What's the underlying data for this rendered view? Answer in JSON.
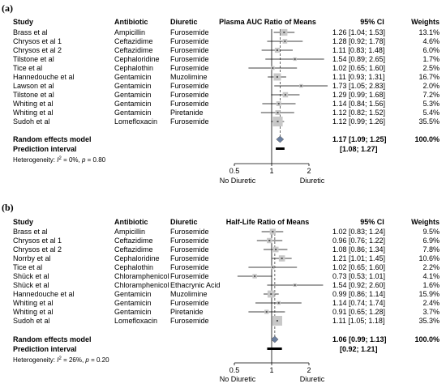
{
  "chart_data": [
    {
      "panel_label": "(a)",
      "type": "forest",
      "columns": [
        "Study",
        "Antibiotic",
        "Diuretic",
        "Plasma AUC Ratio of Means",
        "95% CI",
        "Weights"
      ],
      "rows": [
        {
          "study": "Brass et al",
          "antibiotic": "Ampicillin",
          "diuretic": "Furosemide",
          "est": 1.26,
          "lo": 1.04,
          "hi": 1.53,
          "ci": "1.26 [1.04; 1.53]",
          "weight": "13.1%",
          "w": 13.1
        },
        {
          "study": "Chrysos et al 1",
          "antibiotic": "Ceftazidime",
          "diuretic": "Furosemide",
          "est": 1.28,
          "lo": 0.92,
          "hi": 1.78,
          "ci": "1.28 [0.92; 1.78]",
          "weight": "4.6%",
          "w": 4.6
        },
        {
          "study": "Chrysos et al 2",
          "antibiotic": "Ceftazidime",
          "diuretic": "Furosemide",
          "est": 1.11,
          "lo": 0.83,
          "hi": 1.48,
          "ci": "1.11 [0.83; 1.48]",
          "weight": "6.0%",
          "w": 6.0
        },
        {
          "study": "Tilstone et al",
          "antibiotic": "Cephaloridine",
          "diuretic": "Furosemide",
          "est": 1.54,
          "lo": 0.89,
          "hi": 2.65,
          "ci": "1.54 [0.89; 2.65]",
          "weight": "1.7%",
          "w": 1.7
        },
        {
          "study": "Tice et al",
          "antibiotic": "Cephalothin",
          "diuretic": "Furosemide",
          "est": 1.02,
          "lo": 0.65,
          "hi": 1.6,
          "ci": "1.02 [0.65; 1.60]",
          "weight": "2.5%",
          "w": 2.5
        },
        {
          "study": "Hannedouche et al",
          "antibiotic": "Gentamicin",
          "diuretic": "Muzolimine",
          "est": 1.11,
          "lo": 0.93,
          "hi": 1.31,
          "ci": "1.11 [0.93; 1.31]",
          "weight": "16.7%",
          "w": 16.7
        },
        {
          "study": "Lawson et al",
          "antibiotic": "Gentamicin",
          "diuretic": "Furosemide",
          "est": 1.73,
          "lo": 1.05,
          "hi": 2.83,
          "ci": "1.73 [1.05; 2.83]",
          "weight": "2.0%",
          "w": 2.0
        },
        {
          "study": "Tilstone et al",
          "antibiotic": "Gentamicin",
          "diuretic": "Furosemide",
          "est": 1.29,
          "lo": 0.99,
          "hi": 1.68,
          "ci": "1.29 [0.99; 1.68]",
          "weight": "7.2%",
          "w": 7.2
        },
        {
          "study": "Whiting et al",
          "antibiotic": "Gentamicin",
          "diuretic": "Furosemide",
          "est": 1.14,
          "lo": 0.84,
          "hi": 1.56,
          "ci": "1.14 [0.84; 1.56]",
          "weight": "5.3%",
          "w": 5.3
        },
        {
          "study": "Whiting et al",
          "antibiotic": "Gentamicin",
          "diuretic": "Piretanide",
          "est": 1.12,
          "lo": 0.82,
          "hi": 1.52,
          "ci": "1.12 [0.82; 1.52]",
          "weight": "5.4%",
          "w": 5.4
        },
        {
          "study": "Sudoh et al",
          "antibiotic": "Lomefloxacin",
          "diuretic": "Furosemide",
          "est": 1.12,
          "lo": 0.99,
          "hi": 1.26,
          "ci": "1.12 [0.99; 1.26]",
          "weight": "35.5%",
          "w": 35.5
        }
      ],
      "random_effects": {
        "label": "Random effects model",
        "est": 1.17,
        "lo": 1.09,
        "hi": 1.25,
        "ci": "1.17 [1.09; 1.25]",
        "weight": "100.0%"
      },
      "prediction": {
        "label": "Prediction interval",
        "lo": 1.08,
        "hi": 1.27,
        "ci": "[1.08; 1.27]"
      },
      "heterogeneity": {
        "prefix": "Heterogeneity: ",
        "i2": "I",
        "i2_rest": " = 0%, ",
        "p": "p",
        "p_rest": " = 0.80"
      },
      "axis": {
        "ticks": [
          "0.5",
          "1",
          "2"
        ],
        "tick_values": [
          0.5,
          1,
          2
        ],
        "scale": "log",
        "left_label": "No Diuretic",
        "right_label": "Diuretic"
      }
    },
    {
      "panel_label": "(b)",
      "type": "forest",
      "columns": [
        "Study",
        "Antibiotic",
        "Diuretic",
        "Half-Life Ratio of Means",
        "95% CI",
        "Weights"
      ],
      "rows": [
        {
          "study": "Brass et al",
          "antibiotic": "Ampicillin",
          "diuretic": "Furosemide",
          "est": 1.02,
          "lo": 0.83,
          "hi": 1.24,
          "ci": "1.02 [0.83; 1.24]",
          "weight": "9.5%",
          "w": 9.5
        },
        {
          "study": "Chrysos et al 1",
          "antibiotic": "Ceftazidime",
          "diuretic": "Furosemide",
          "est": 0.96,
          "lo": 0.76,
          "hi": 1.22,
          "ci": "0.96 [0.76; 1.22]",
          "weight": "6.9%",
          "w": 6.9
        },
        {
          "study": "Chrysos et al 2",
          "antibiotic": "Ceftazidime",
          "diuretic": "Furosemide",
          "est": 1.08,
          "lo": 0.86,
          "hi": 1.34,
          "ci": "1.08 [0.86; 1.34]",
          "weight": "7.8%",
          "w": 7.8
        },
        {
          "study": "Norrby et al",
          "antibiotic": "Cephaloridine",
          "diuretic": "Furosemide",
          "est": 1.21,
          "lo": 1.01,
          "hi": 1.45,
          "ci": "1.21 [1.01; 1.45]",
          "weight": "10.6%",
          "w": 10.6
        },
        {
          "study": "Tice et al",
          "antibiotic": "Cephalothin",
          "diuretic": "Furosemide",
          "est": 1.02,
          "lo": 0.65,
          "hi": 1.6,
          "ci": "1.02 [0.65; 1.60]",
          "weight": "2.2%",
          "w": 2.2
        },
        {
          "study": "Shück et al",
          "antibiotic": "Chloramphenicol",
          "diuretic": "Furosemide",
          "est": 0.73,
          "lo": 0.53,
          "hi": 1.01,
          "ci": "0.73 [0.53; 1.01]",
          "weight": "4.1%",
          "w": 4.1
        },
        {
          "study": "Shück et al",
          "antibiotic": "Chloramphenicol",
          "diuretic": "Ethacrynic Acid",
          "est": 1.54,
          "lo": 0.92,
          "hi": 2.6,
          "ci": "1.54 [0.92; 2.60]",
          "weight": "1.6%",
          "w": 1.6
        },
        {
          "study": "Hannedouche et al",
          "antibiotic": "Gentamicin",
          "diuretic": "Muzolimine",
          "est": 0.99,
          "lo": 0.86,
          "hi": 1.14,
          "ci": "0.99 [0.86; 1.14]",
          "weight": "15.9%",
          "w": 15.9
        },
        {
          "study": "Whiting et al",
          "antibiotic": "Gentamicin",
          "diuretic": "Furosemide",
          "est": 1.14,
          "lo": 0.74,
          "hi": 1.74,
          "ci": "1.14 [0.74; 1.74]",
          "weight": "2.4%",
          "w": 2.4
        },
        {
          "study": "Whiting et al",
          "antibiotic": "Gentamicin",
          "diuretic": "Piretanide",
          "est": 0.91,
          "lo": 0.65,
          "hi": 1.28,
          "ci": "0.91 [0.65; 1.28]",
          "weight": "3.7%",
          "w": 3.7
        },
        {
          "study": "Sudoh et al",
          "antibiotic": "Lomefloxacin",
          "diuretic": "Furosemide",
          "est": 1.11,
          "lo": 1.05,
          "hi": 1.18,
          "ci": "1.11 [1.05; 1.18]",
          "weight": "35.3%",
          "w": 35.3
        }
      ],
      "random_effects": {
        "label": "Random effects model",
        "est": 1.06,
        "lo": 0.99,
        "hi": 1.13,
        "ci": "1.06 [0.99; 1.13]",
        "weight": "100.0%"
      },
      "prediction": {
        "label": "Prediction interval",
        "lo": 0.92,
        "hi": 1.21,
        "ci": "[0.92; 1.21]"
      },
      "heterogeneity": {
        "prefix": "Heterogeneity: ",
        "i2": "I",
        "i2_rest": " = 26%, ",
        "p": "p",
        "p_rest": " = 0.20"
      },
      "axis": {
        "ticks": [
          "0.5",
          "1",
          "2"
        ],
        "tick_values": [
          0.5,
          1,
          2
        ],
        "scale": "log",
        "left_label": "No Diuretic",
        "right_label": "Diuretic"
      }
    }
  ]
}
